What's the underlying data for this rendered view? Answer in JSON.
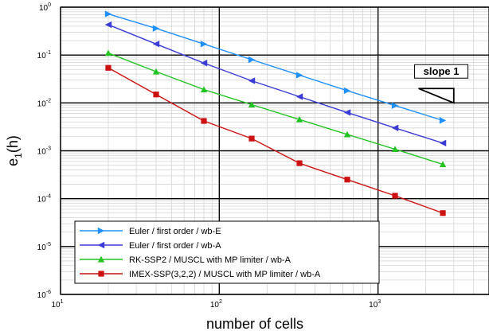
{
  "chart_data": {
    "type": "line",
    "xlabel": "number of cells",
    "ylabel": {
      "base": "e",
      "sub": "1",
      "rest": "(h)"
    },
    "x_scale": "log",
    "y_scale": "log",
    "xlim": [
      10,
      5000
    ],
    "ylim": [
      1e-06,
      1
    ],
    "grid": true,
    "legend_position": "lower-left",
    "x_ticks": [
      {
        "value": 10,
        "base": "10",
        "exp": "1"
      },
      {
        "value": 100,
        "base": "10",
        "exp": "2"
      },
      {
        "value": 1000,
        "base": "10",
        "exp": "3"
      }
    ],
    "y_ticks": [
      {
        "value": 1,
        "base": "10",
        "exp": "0"
      },
      {
        "value": 0.1,
        "base": "10",
        "exp": "-1"
      },
      {
        "value": 0.01,
        "base": "10",
        "exp": "-2"
      },
      {
        "value": 0.001,
        "base": "10",
        "exp": "-3"
      },
      {
        "value": 0.0001,
        "base": "10",
        "exp": "-4"
      },
      {
        "value": 1e-05,
        "base": "10",
        "exp": "-5"
      },
      {
        "value": 1e-06,
        "base": "10",
        "exp": "-6"
      }
    ],
    "x": [
      20,
      40,
      80,
      160,
      320,
      640,
      1280,
      2560
    ],
    "series": [
      {
        "name": "Euler / first order / wb-E",
        "color": "#1e90ff",
        "marker": "triangle-right",
        "values": [
          0.72,
          0.36,
          0.17,
          0.08,
          0.038,
          0.018,
          0.0088,
          0.0043
        ]
      },
      {
        "name": "Euler / first order / wb-A",
        "color": "#3b3bd6",
        "marker": "triangle-left",
        "values": [
          0.43,
          0.17,
          0.068,
          0.029,
          0.0135,
          0.0063,
          0.003,
          0.00145
        ]
      },
      {
        "name": "RK-SSP2 / MUSCL with MP limiter / wb-A",
        "color": "#22c422",
        "marker": "triangle-up",
        "values": [
          0.11,
          0.045,
          0.019,
          0.0092,
          0.0045,
          0.0022,
          0.00108,
          0.00052
        ]
      },
      {
        "name": "IMEX-SSP(3,2,2) / MUSCL with MP limiter / wb-A",
        "color": "#cc1111",
        "marker": "square",
        "values": [
          0.054,
          0.015,
          0.0042,
          0.0018,
          0.00055,
          0.00025,
          0.000115,
          5e-05
        ]
      }
    ],
    "annotation": {
      "label": "slope 1",
      "triangle": [
        [
          1800,
          0.02
        ],
        [
          3000,
          0.02
        ],
        [
          3000,
          0.01
        ]
      ]
    }
  }
}
